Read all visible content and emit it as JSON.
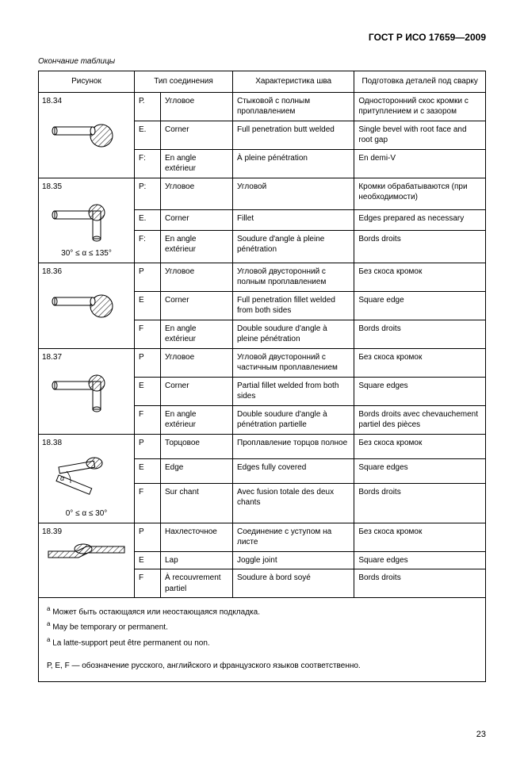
{
  "doc_code": "ГОСТ Р ИСО 17659—2009",
  "caption": "Окончание таблицы",
  "headers": {
    "col1": "Рисунок",
    "col2": "Тип соединения",
    "col3": "Характеристика шва",
    "col4": "Подготовка деталей под сварку"
  },
  "groups": [
    {
      "num": "18.34",
      "angle": "",
      "svg": "corner-round",
      "rows": [
        {
          "lang": "Р.",
          "type": "Угловое",
          "char": "Стыковой с полным проплавлением",
          "prep": "Односторонний скос кром­ки с притуплением и с зазо­ром"
        },
        {
          "lang": "Е.",
          "type": "Corner",
          "char": "Full penetration butt welded",
          "prep": "Single bevel with root face and root gap"
        },
        {
          "lang": "F:",
          "type": "En angle extérieur",
          "char": "À pleine pénétration",
          "prep": "En demi-V"
        }
      ]
    },
    {
      "num": "18.35",
      "angle": "30° ≤ α ≤ 135°",
      "svg": "corner-sq",
      "rows": [
        {
          "lang": "Р:",
          "type": "Угловое",
          "char": "Угловой",
          "prep": "Кромки обрабатываются (при необходимости)"
        },
        {
          "lang": "Е.",
          "type": "Corner",
          "char": "Fillet",
          "prep": "Edges prepared as necessary"
        },
        {
          "lang": "F:",
          "type": "En angle extérieur",
          "char": "Soudure d'angle à pleine pénétration",
          "prep": "Bords droits"
        }
      ]
    },
    {
      "num": "18.36",
      "angle": "",
      "svg": "corner-round",
      "rows": [
        {
          "lang": "Р",
          "type": "Угловое",
          "char": "Угловой двусторонний с полным проплавлением",
          "prep": "Без скоса кромок"
        },
        {
          "lang": "Е",
          "type": "Corner",
          "char": "Full penetration fillet welded from both sides",
          "prep": "Square edge"
        },
        {
          "lang": "F",
          "type": "En angle extérieur",
          "char": "Double soudure d'angle à pleine pénétration",
          "prep": "Bords droits"
        }
      ]
    },
    {
      "num": "18.37",
      "angle": "",
      "svg": "corner-sq",
      "rows": [
        {
          "lang": "Р",
          "type": "Угловое",
          "char": "Угловой двусторонний с частичным проплавлением",
          "prep": "Без скоса кромок"
        },
        {
          "lang": "Е",
          "type": "Corner",
          "char": "Partial fillet welded from both sides",
          "prep": "Square edges"
        },
        {
          "lang": "F",
          "type": "En angle extérieur",
          "char": "Double soudure d'angle à pénétration partielle",
          "prep": "Bords droits avec chevauchement partiel des pièces"
        }
      ]
    },
    {
      "num": "18.38",
      "angle": "0° ≤ α ≤ 30°",
      "svg": "edge",
      "rows": [
        {
          "lang": "Р",
          "type": "Торцовое",
          "char": "Проплавление торцов полное",
          "prep": "Без скоса кромок"
        },
        {
          "lang": "Е",
          "type": "Edge",
          "char": "Edges fully covered",
          "prep": "Square edges"
        },
        {
          "lang": "F",
          "type": "Sur chant",
          "char": "Avec fusion totale des deux chants",
          "prep": "Bords droits"
        }
      ]
    },
    {
      "num": "18.39",
      "angle": "",
      "svg": "lap",
      "rows": [
        {
          "lang": "Р",
          "type": "Нахлесточное",
          "char": "Соединение с уступом на листе",
          "prep": "Без скоса кромок"
        },
        {
          "lang": "Е",
          "type": "Lap",
          "char": "Joggle joint",
          "prep": "Square edges"
        },
        {
          "lang": "F",
          "type": "À recouvrement partiel",
          "char": "Soudure à bord soyé",
          "prep": "Bords droits"
        }
      ]
    }
  ],
  "footnotes": {
    "a1": "Может быть остающаяся или неостающаяся подкладка.",
    "a2": "May be temporary or permanent.",
    "a3": "La latte-support peut  être permanent ou non.",
    "legend": "Р, Е, F — обозначение русского, английского и французского языков соответственно."
  },
  "page_num": "23",
  "style": {
    "hatch": "#000",
    "stroke": "#000"
  }
}
